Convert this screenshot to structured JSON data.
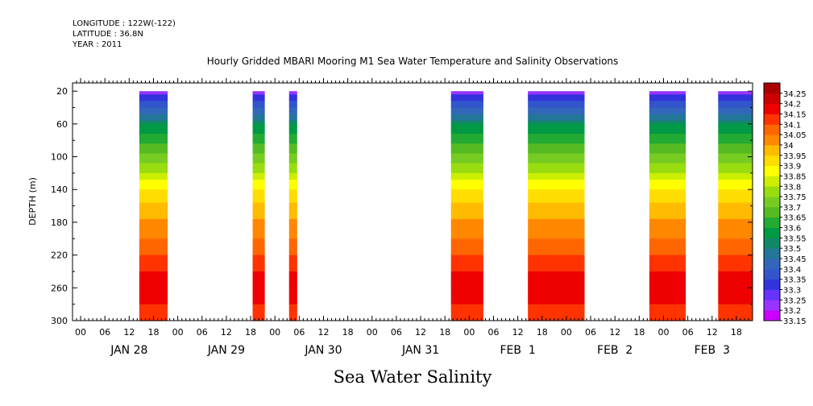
{
  "header": {
    "longitude_label": "LONGITUDE : 122W(-122)",
    "latitude_label": "LATITUDE : 36.8N",
    "year_label": "YEAR : 2011"
  },
  "chart_data": {
    "type": "heatmap",
    "title": "Hourly Gridded MBARI Mooring M1 Sea Water Temperature and Salinity Observations",
    "xlabel": "",
    "ylabel": "DEPTH (m)",
    "footer_label": "Sea Water Salinity",
    "x_units": "hours since JAN 28 00:00",
    "xlim": [
      -2,
      166
    ],
    "ylim": [
      300,
      10
    ],
    "y_ticks": [
      20,
      60,
      100,
      140,
      180,
      220,
      260,
      300
    ],
    "x_hour_tick_labels": [
      "00",
      "06",
      "12",
      "18"
    ],
    "x_day_labels": [
      "JAN 28",
      "JAN 29",
      "JAN 30",
      "JAN 31",
      "FEB  1",
      "FEB  2",
      "FEB  3"
    ],
    "grid": false,
    "legend": "right colorbar",
    "colorbar_levels": [
      33.15,
      33.2,
      33.25,
      33.3,
      33.35,
      33.4,
      33.45,
      33.5,
      33.55,
      33.6,
      33.65,
      33.7,
      33.75,
      33.8,
      33.85,
      33.9,
      33.95,
      34,
      34.05,
      34.1,
      34.15,
      34.2,
      34.25
    ],
    "colorbar_labels": [
      "33.15",
      "33.2",
      "33.25",
      "33.3",
      "33.35",
      "33.4",
      "33.45",
      "33.5",
      "33.55",
      "33.6",
      "33.65",
      "33.7",
      "33.75",
      "33.8",
      "33.85",
      "33.9",
      "33.95",
      "34",
      "34.05",
      "34.1",
      "34.15",
      "34.2",
      "34.25"
    ],
    "colorbar_colors": [
      "#cc00ff",
      "#9933ff",
      "#6633ff",
      "#3333dd",
      "#3355cc",
      "#3366bb",
      "#227799",
      "#118866",
      "#009944",
      "#22aa33",
      "#55bb22",
      "#77cc22",
      "#99dd11",
      "#ccee00",
      "#ffff00",
      "#ffdd00",
      "#ffbb00",
      "#ff8800",
      "#ff6600",
      "#ff3300",
      "#ee0000",
      "#cc0000",
      "#aa0000"
    ],
    "data_segments": [
      {
        "start_hour": 14.5,
        "end_hour": 21.5
      },
      {
        "start_hour": 42.5,
        "end_hour": 45.5
      },
      {
        "start_hour": 51.5,
        "end_hour": 53.5
      },
      {
        "start_hour": 91.5,
        "end_hour": 99.5
      },
      {
        "start_hour": 110.5,
        "end_hour": 124.5
      },
      {
        "start_hour": 140.5,
        "end_hour": 149.5
      },
      {
        "start_hour": 157.5,
        "end_hour": 166
      }
    ],
    "depth_profile": [
      {
        "depth": 20,
        "salinity": 33.2
      },
      {
        "depth": 25,
        "salinity": 33.3
      },
      {
        "depth": 35,
        "salinity": 33.38
      },
      {
        "depth": 50,
        "salinity": 33.47
      },
      {
        "depth": 65,
        "salinity": 33.57
      },
      {
        "depth": 85,
        "salinity": 33.65
      },
      {
        "depth": 105,
        "salinity": 33.74
      },
      {
        "depth": 125,
        "salinity": 33.83
      },
      {
        "depth": 145,
        "salinity": 33.92
      },
      {
        "depth": 165,
        "salinity": 33.98
      },
      {
        "depth": 190,
        "salinity": 34.03
      },
      {
        "depth": 215,
        "salinity": 34.08
      },
      {
        "depth": 235,
        "salinity": 34.14
      },
      {
        "depth": 255,
        "salinity": 34.2
      },
      {
        "depth": 275,
        "salinity": 34.17
      },
      {
        "depth": 290,
        "salinity": 34.12
      },
      {
        "depth": 300,
        "salinity": 34.1
      }
    ]
  }
}
